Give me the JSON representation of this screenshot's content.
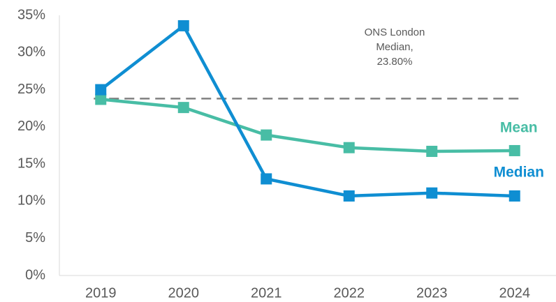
{
  "chart_data": {
    "type": "line",
    "categories": [
      "2019",
      "2020",
      "2021",
      "2022",
      "2023",
      "2024"
    ],
    "series": [
      {
        "name": "Mean",
        "color": "#48bda5",
        "values": [
          23.7,
          22.6,
          18.9,
          17.2,
          16.7,
          16.8
        ]
      },
      {
        "name": "Median",
        "color": "#0f8ed2",
        "values": [
          25.0,
          33.6,
          13.0,
          10.7,
          11.1,
          10.7
        ]
      }
    ],
    "ylim": [
      0,
      35
    ],
    "yticks": [
      {
        "value": 0,
        "label": "0%"
      },
      {
        "value": 5,
        "label": "5%"
      },
      {
        "value": 10,
        "label": "10%"
      },
      {
        "value": 15,
        "label": "15%"
      },
      {
        "value": 20,
        "label": "20%"
      },
      {
        "value": 25,
        "label": "25%"
      },
      {
        "value": 30,
        "label": "30%"
      },
      {
        "value": 35,
        "label": "35%"
      }
    ],
    "grid": false,
    "reference": {
      "value": 23.8,
      "color": "#808080",
      "lines": [
        "ONS London",
        "Median,",
        "23.80%"
      ]
    }
  }
}
